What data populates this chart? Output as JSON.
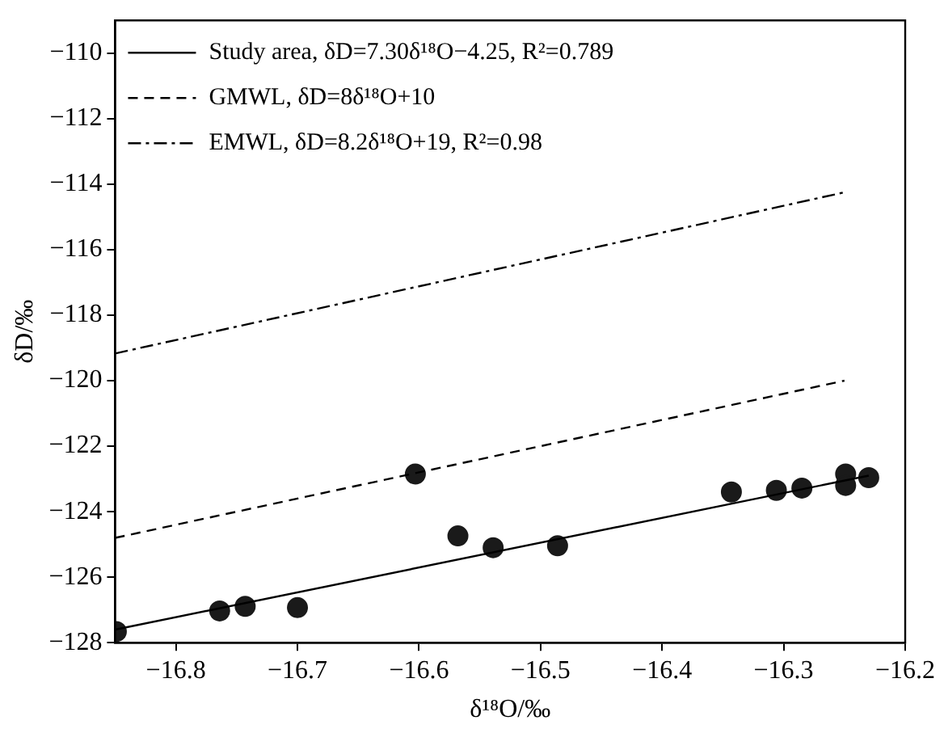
{
  "chart_data": {
    "type": "scatter",
    "xlabel": "δ¹⁸O/‰",
    "ylabel": "δD/‰",
    "xlim": [
      -16.85,
      -16.2
    ],
    "ylim": [
      -128,
      -109
    ],
    "xticks": [
      -16.8,
      -16.7,
      -16.6,
      -16.5,
      -16.4,
      -16.3,
      -16.2
    ],
    "yticks": [
      -128,
      -126,
      -124,
      -122,
      -120,
      -118,
      -116,
      -114,
      -112,
      -110
    ],
    "grid": false,
    "legend": "top left",
    "series": [
      {
        "type": "line",
        "name": "Study area, δD=7.30δ¹⁸O−4.25, R²=0.789",
        "color": "#000000",
        "line_style": "solid",
        "marker": "none",
        "x": [
          -16.85,
          -16.23
        ],
        "values": [
          -127.6,
          -122.9
        ]
      },
      {
        "type": "line",
        "name": "GMWL, δD=8δ¹⁸O+10",
        "color": "#000000",
        "line_style": "dashed",
        "marker": "none",
        "x": [
          -16.85,
          -16.25
        ],
        "values": [
          -124.8,
          -120
        ]
      },
      {
        "type": "line",
        "name": "EMWL, δD=8.2δ¹⁸O+19, R²=0.98",
        "color": "#000000",
        "line_style": "dashdot",
        "marker": "none",
        "x": [
          -16.85,
          -16.25
        ],
        "values": [
          -119.17,
          -114.25
        ]
      },
      {
        "color": "#1a1a1a",
        "marker": "circle",
        "x": [
          -16.849,
          -16.764,
          -16.743,
          -16.7,
          -16.603,
          -16.568,
          -16.539,
          -16.486,
          -16.343,
          -16.306,
          -16.285,
          -16.249,
          -16.249,
          -16.23
        ],
        "values": [
          -127.66,
          -127.03,
          -126.89,
          -126.93,
          -122.85,
          -124.74,
          -125.1,
          -125.04,
          -123.4,
          -123.35,
          -123.28,
          -122.85,
          -123.2,
          -122.96
        ]
      }
    ]
  }
}
